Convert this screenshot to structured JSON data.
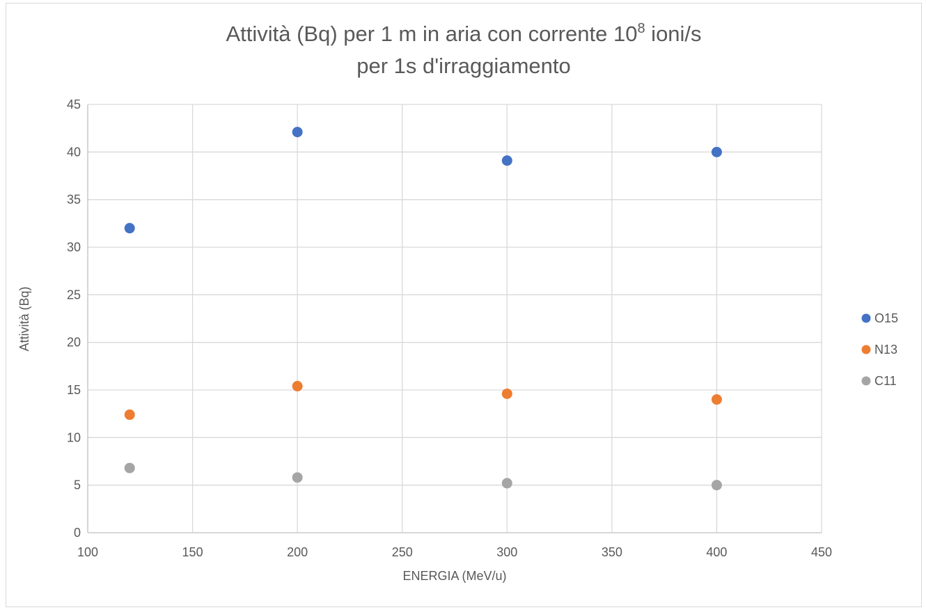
{
  "chart_data": {
    "type": "scatter",
    "title": {
      "line1_before_sup": "Attività (Bq) per 1 m in aria con corrente 10",
      "line1_sup": "8",
      "line1_after_sup": " ioni/s",
      "line2": "per 1s d'irraggiamento"
    },
    "xlabel": "ENERGIA (MeV/u)",
    "ylabel": "Attività (Bq)",
    "xlim": [
      100,
      450
    ],
    "ylim": [
      0,
      45
    ],
    "x_ticks": [
      100,
      150,
      200,
      250,
      300,
      350,
      400,
      450
    ],
    "y_ticks": [
      0,
      5,
      10,
      15,
      20,
      25,
      30,
      35,
      40,
      45
    ],
    "grid": true,
    "legend_position": "right",
    "series": [
      {
        "name": "O15",
        "color": "#4472c4",
        "points": [
          {
            "x": 120,
            "y": 32.0
          },
          {
            "x": 200,
            "y": 42.1
          },
          {
            "x": 300,
            "y": 39.1
          },
          {
            "x": 400,
            "y": 40.0
          }
        ]
      },
      {
        "name": "N13",
        "color": "#ed7d31",
        "points": [
          {
            "x": 120,
            "y": 12.4
          },
          {
            "x": 200,
            "y": 15.4
          },
          {
            "x": 300,
            "y": 14.6
          },
          {
            "x": 400,
            "y": 14.0
          }
        ]
      },
      {
        "name": "C11",
        "color": "#a5a5a5",
        "points": [
          {
            "x": 120,
            "y": 6.8
          },
          {
            "x": 200,
            "y": 5.8
          },
          {
            "x": 300,
            "y": 5.2
          },
          {
            "x": 400,
            "y": 5.0
          }
        ]
      }
    ]
  }
}
